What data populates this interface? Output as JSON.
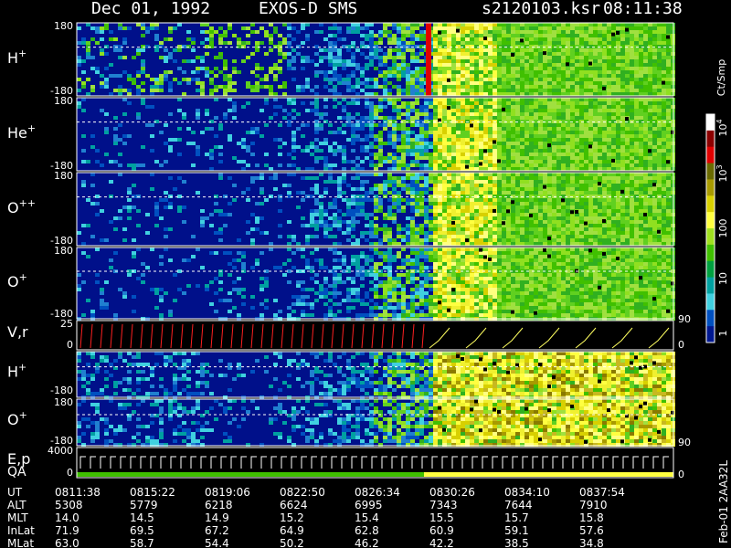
{
  "header": {
    "date": "Dec 01, 1992",
    "instrument": "EXOS-D SMS",
    "file": "s2120103.ksr",
    "time": "08:11:38"
  },
  "colors": {
    "background": "#000000",
    "panel_bg": "#00108a",
    "trace_red": "#ff2020",
    "trace_yellow": "#ffff60"
  },
  "chart_data": {
    "type": "heatmap",
    "title": "Dec 01, 1992   EXOS-D SMS",
    "panels": [
      {
        "label": "H",
        "sup": "+",
        "y_ticks": [
          "180",
          "-180"
        ]
      },
      {
        "label": "He",
        "sup": "+",
        "y_ticks": [
          "180",
          "-180"
        ]
      },
      {
        "label": "O",
        "sup": "++",
        "y_ticks": [
          "180",
          "-180"
        ]
      },
      {
        "label": "O",
        "sup": "+",
        "y_ticks": [
          "180",
          "-180"
        ]
      },
      {
        "label": "V,r",
        "sup": "",
        "y_ticks": [
          "25",
          "0"
        ],
        "right_ticks": [
          "90",
          "0"
        ]
      },
      {
        "label": "H",
        "sup": "+",
        "y_ticks": [
          "-180"
        ]
      },
      {
        "label": "O",
        "sup": "+",
        "y_ticks": [
          "180",
          "-180"
        ],
        "right_ticks": [
          "90"
        ]
      },
      {
        "label": "E,p",
        "sup": "",
        "label2": "QA",
        "y_ticks": [
          "4000",
          "0"
        ],
        "right_ticks": [
          "0"
        ]
      }
    ],
    "colorbar": {
      "unit": "Ct/Smp",
      "ticks": [
        {
          "base": "10",
          "exp": "4"
        },
        {
          "base": "10",
          "exp": "3"
        },
        {
          "base": "100",
          "exp": ""
        },
        {
          "base": "10",
          "exp": ""
        },
        {
          "base": "1",
          "exp": ""
        }
      ],
      "colors": [
        "#ffffff",
        "#8c0000",
        "#e00000",
        "#6a6a00",
        "#a89a00",
        "#d8d000",
        "#ffff40",
        "#a0e020",
        "#40c000",
        "#00a040",
        "#00a0a0",
        "#40d0e0",
        "#0050c0",
        "#001890"
      ]
    },
    "footer": {
      "rows": [
        {
          "name": "UT",
          "values": [
            "0811:38",
            "0815:22",
            "0819:06",
            "0822:50",
            "0826:34",
            "0830:26",
            "0834:10",
            "0837:54"
          ]
        },
        {
          "name": "ALT",
          "values": [
            "5308",
            "5779",
            "6218",
            "6624",
            "6995",
            "7343",
            "7644",
            "7910"
          ]
        },
        {
          "name": "MLT",
          "values": [
            "14.0",
            "14.5",
            "14.9",
            "15.2",
            "15.4",
            "15.5",
            "15.7",
            "15.8"
          ]
        },
        {
          "name": "InLat",
          "values": [
            "71.9",
            "69.5",
            "67.2",
            "64.9",
            "62.8",
            "60.9",
            "59.1",
            "57.6"
          ]
        },
        {
          "name": "MLat",
          "values": [
            "63.0",
            "58.7",
            "54.4",
            "50.2",
            "46.2",
            "42.2",
            "38.5",
            "34.8"
          ]
        }
      ]
    },
    "side_note": "Feb-01 2AA32L"
  }
}
